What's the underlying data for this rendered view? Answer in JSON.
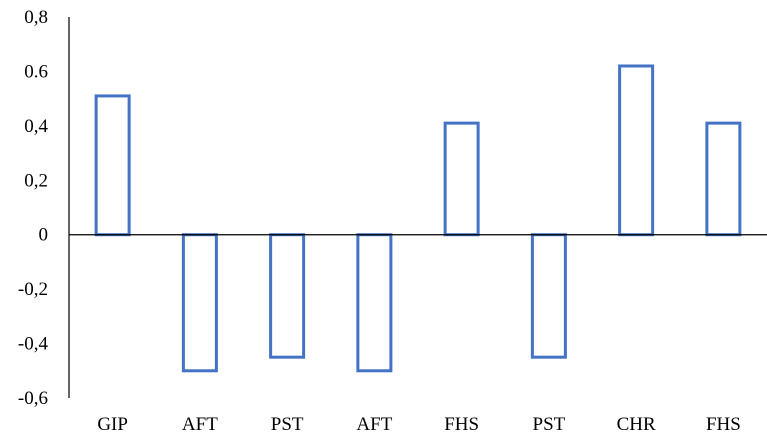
{
  "chart_data": {
    "type": "bar",
    "title": "",
    "xlabel": "",
    "ylabel": "",
    "categories": [
      "GIP",
      "AFT",
      "PST",
      "AFT",
      "FHS",
      "PST",
      "CHR",
      "FHS"
    ],
    "values": [
      0.51,
      -0.5,
      -0.45,
      -0.5,
      0.41,
      -0.45,
      0.62,
      0.41
    ],
    "ylim": [
      -0.6,
      0.8
    ],
    "yticks": [
      0.8,
      0.6,
      0.4,
      0.2,
      0,
      -0.2,
      -0.4,
      -0.6
    ],
    "ytick_labels": [
      "0,8",
      "0.6",
      "0,4",
      "0,2",
      "0",
      "-0,2",
      "-0,4",
      "-0,6"
    ],
    "grid": false,
    "legend": "none",
    "bar_style": "outline",
    "bar_color": "#4472C4",
    "axis_color": "#000000"
  }
}
